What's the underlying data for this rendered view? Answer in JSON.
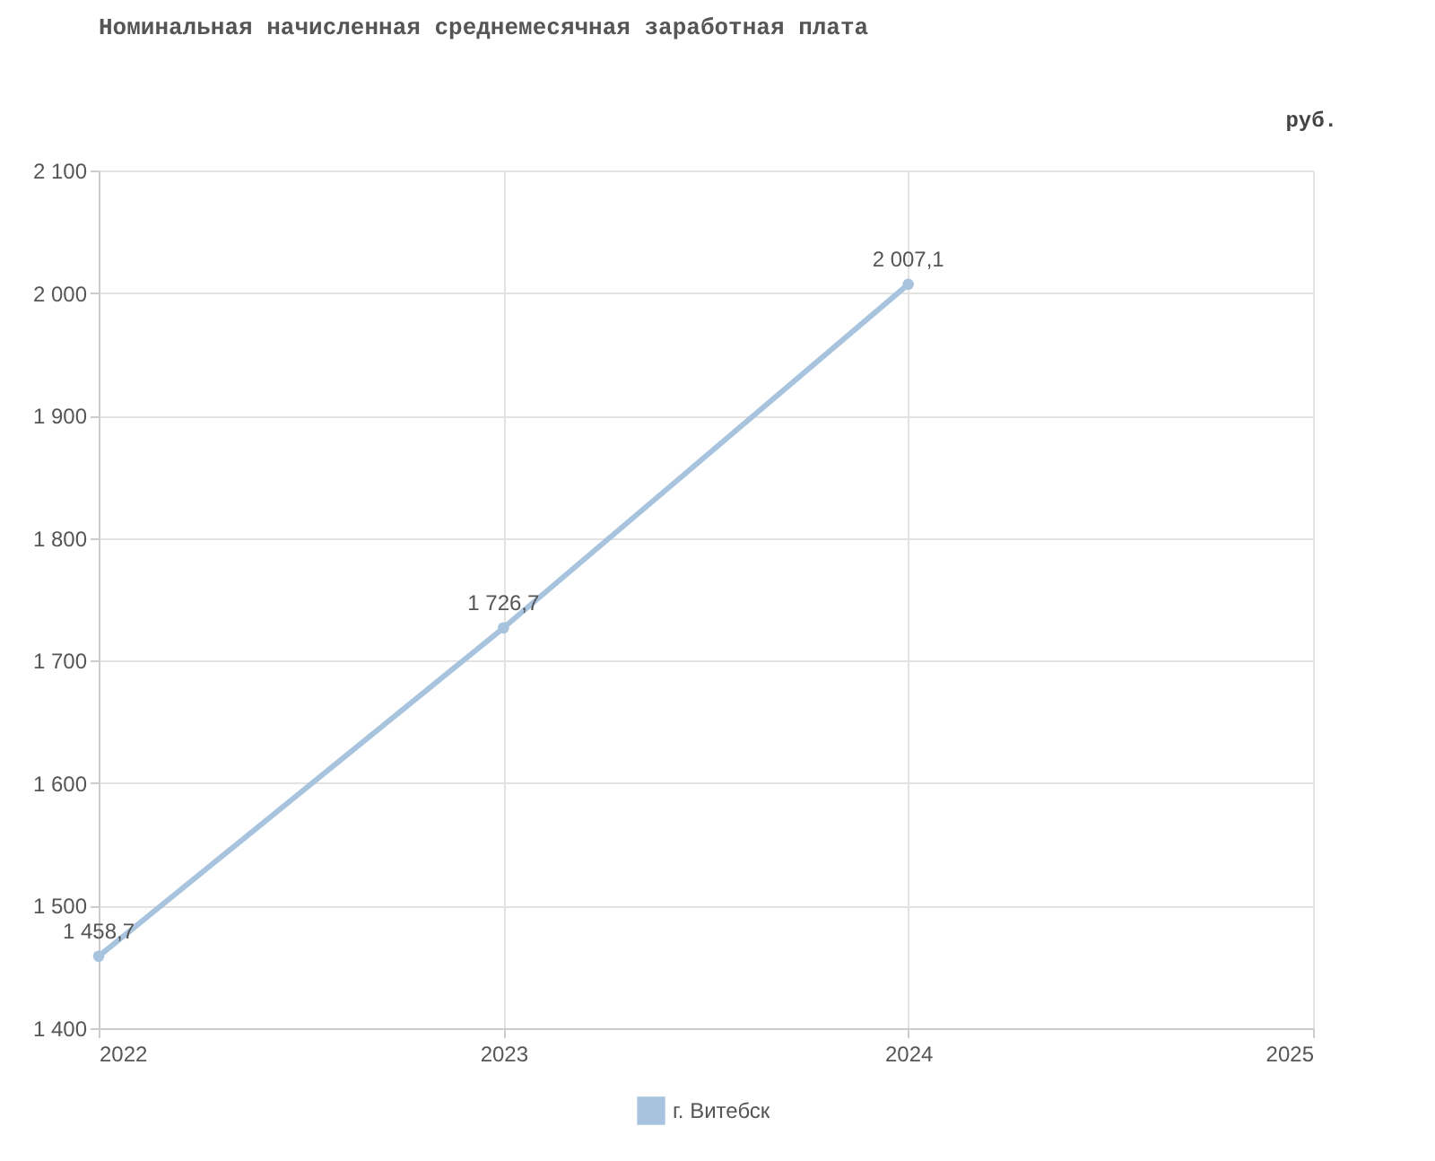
{
  "chart_data": {
    "type": "line",
    "title": "Номинальная начисленная среднемесячная заработная плата",
    "ylabel": "руб.",
    "x": [
      2022,
      2023,
      2024
    ],
    "series": [
      {
        "name": "г. Витебск",
        "color": "#a7c3de",
        "values": [
          1458.7,
          1726.7,
          2007.1
        ],
        "value_labels": [
          "1 458,7",
          "1 726,7",
          "2 007,1"
        ]
      }
    ],
    "xlim": [
      2022,
      2025
    ],
    "xticks": [
      2022,
      2023,
      2024,
      2025
    ],
    "ylim": [
      1400,
      2100
    ],
    "yticks": [
      {
        "value": 1400,
        "label": "1 400"
      },
      {
        "value": 1500,
        "label": "1 500"
      },
      {
        "value": 1600,
        "label": "1 600"
      },
      {
        "value": 1700,
        "label": "1 700"
      },
      {
        "value": 1800,
        "label": "1 800"
      },
      {
        "value": 1900,
        "label": "1 900"
      },
      {
        "value": 2000,
        "label": "2 000"
      },
      {
        "value": 2100,
        "label": "2 100"
      }
    ],
    "grid": true,
    "legend": "bottom",
    "marker": "circle",
    "line_style": "solid"
  }
}
